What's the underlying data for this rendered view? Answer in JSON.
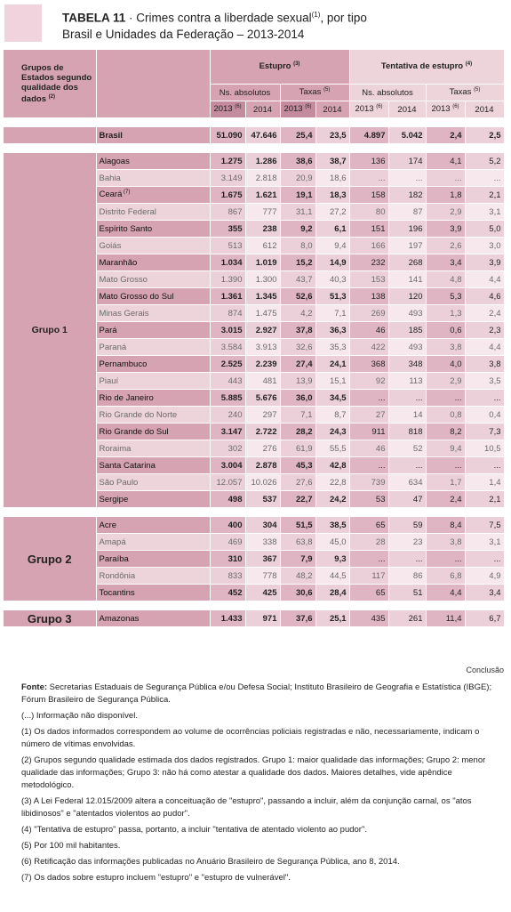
{
  "title": {
    "label": "TABELA 11",
    "text": "· Crimes contra a liberdade sexual",
    "sup": "(1)",
    "suffix": ", por tipo",
    "subtitle": "Brasil e Unidades da Federação – 2013-2014"
  },
  "header": {
    "group_col": "Grupos de Estados segundo qualidade dos dados",
    "group_col_sup": "(2)",
    "estupro": "Estupro",
    "estupro_sup": "(3)",
    "tentativa": "Tentativa de estupro",
    "tentativa_sup": "(4)",
    "ns_absolutos": "Ns. absolutos",
    "taxas": "Taxas",
    "taxas_sup": "(5)",
    "year_2013": "2013",
    "year_2013_sup": "(6)",
    "year_2014": "2014"
  },
  "brasil": [
    "Brasil",
    "51.090",
    "47.646",
    "25,4",
    "23,5",
    "4.897",
    "5.042",
    "2,4",
    "2,5"
  ],
  "groups": [
    {
      "label": "Grupo 1",
      "rows": [
        {
          "name": "Alagoas",
          "strong": true,
          "vals": [
            "1.275",
            "1.286",
            "38,6",
            "38,7",
            "136",
            "174",
            "4,1",
            "5,2"
          ]
        },
        {
          "name": "Bahia",
          "strong": false,
          "vals": [
            "3.149",
            "2.818",
            "20,9",
            "18,6",
            "...",
            "...",
            "...",
            "..."
          ]
        },
        {
          "name": "Ceará",
          "sup": "(7)",
          "strong": true,
          "vals": [
            "1.675",
            "1.621",
            "19,1",
            "18,3",
            "158",
            "182",
            "1,8",
            "2,1"
          ]
        },
        {
          "name": "Distrito Federal",
          "strong": false,
          "vals": [
            "867",
            "777",
            "31,1",
            "27,2",
            "80",
            "87",
            "2,9",
            "3,1"
          ]
        },
        {
          "name": "Espírito Santo",
          "strong": true,
          "vals": [
            "355",
            "238",
            "9,2",
            "6,1",
            "151",
            "196",
            "3,9",
            "5,0"
          ]
        },
        {
          "name": "Goiás",
          "strong": false,
          "vals": [
            "513",
            "612",
            "8,0",
            "9,4",
            "166",
            "197",
            "2,6",
            "3,0"
          ]
        },
        {
          "name": "Maranhão",
          "strong": true,
          "vals": [
            "1.034",
            "1.019",
            "15,2",
            "14,9",
            "232",
            "268",
            "3,4",
            "3,9"
          ]
        },
        {
          "name": "Mato Grosso",
          "strong": false,
          "vals": [
            "1.390",
            "1.300",
            "43,7",
            "40,3",
            "153",
            "141",
            "4,8",
            "4,4"
          ]
        },
        {
          "name": "Mato Grosso do Sul",
          "strong": true,
          "vals": [
            "1.361",
            "1.345",
            "52,6",
            "51,3",
            "138",
            "120",
            "5,3",
            "4,6"
          ]
        },
        {
          "name": "Minas Gerais",
          "strong": false,
          "vals": [
            "874",
            "1.475",
            "4,2",
            "7,1",
            "269",
            "493",
            "1,3",
            "2,4"
          ]
        },
        {
          "name": "Pará",
          "strong": true,
          "vals": [
            "3.015",
            "2.927",
            "37,8",
            "36,3",
            "46",
            "185",
            "0,6",
            "2,3"
          ]
        },
        {
          "name": "Paraná",
          "strong": false,
          "vals": [
            "3.584",
            "3.913",
            "32,6",
            "35,3",
            "422",
            "493",
            "3,8",
            "4,4"
          ]
        },
        {
          "name": "Pernambuco",
          "strong": true,
          "vals": [
            "2.525",
            "2.239",
            "27,4",
            "24,1",
            "368",
            "348",
            "4,0",
            "3,8"
          ]
        },
        {
          "name": "Piauí",
          "strong": false,
          "vals": [
            "443",
            "481",
            "13,9",
            "15,1",
            "92",
            "113",
            "2,9",
            "3,5"
          ]
        },
        {
          "name": "Rio de Janeiro",
          "strong": true,
          "vals": [
            "5.885",
            "5.676",
            "36,0",
            "34,5",
            "...",
            "...",
            "...",
            "..."
          ]
        },
        {
          "name": "Rio Grande do Norte",
          "strong": false,
          "vals": [
            "240",
            "297",
            "7,1",
            "8,7",
            "27",
            "14",
            "0,8",
            "0,4"
          ]
        },
        {
          "name": "Rio Grande do Sul",
          "strong": true,
          "vals": [
            "3.147",
            "2.722",
            "28,2",
            "24,3",
            "911",
            "818",
            "8,2",
            "7,3"
          ]
        },
        {
          "name": "Roraima",
          "strong": false,
          "vals": [
            "302",
            "276",
            "61,9",
            "55,5",
            "46",
            "52",
            "9,4",
            "10,5"
          ]
        },
        {
          "name": "Santa Catarina",
          "strong": true,
          "vals": [
            "3.004",
            "2.878",
            "45,3",
            "42,8",
            "...",
            "...",
            "...",
            "..."
          ]
        },
        {
          "name": "São Paulo",
          "strong": false,
          "vals": [
            "12.057",
            "10.026",
            "27,6",
            "22,8",
            "739",
            "634",
            "1,7",
            "1,4"
          ]
        },
        {
          "name": "Sergipe",
          "strong": true,
          "vals": [
            "498",
            "537",
            "22,7",
            "24,2",
            "53",
            "47",
            "2,4",
            "2,1"
          ]
        }
      ]
    },
    {
      "label": "Grupo 2",
      "rows": [
        {
          "name": "Acre",
          "strong": true,
          "vals": [
            "400",
            "304",
            "51,5",
            "38,5",
            "65",
            "59",
            "8,4",
            "7,5"
          ]
        },
        {
          "name": "Amapá",
          "strong": false,
          "vals": [
            "469",
            "338",
            "63,8",
            "45,0",
            "28",
            "23",
            "3,8",
            "3,1"
          ]
        },
        {
          "name": "Paraíba",
          "strong": true,
          "vals": [
            "310",
            "367",
            "7,9",
            "9,3",
            "...",
            "...",
            "...",
            "..."
          ]
        },
        {
          "name": "Rondônia",
          "strong": false,
          "vals": [
            "833",
            "778",
            "48,2",
            "44,5",
            "117",
            "86",
            "6,8",
            "4,9"
          ]
        },
        {
          "name": "Tocantins",
          "strong": true,
          "vals": [
            "452",
            "425",
            "30,6",
            "28,4",
            "65",
            "51",
            "4,4",
            "3,4"
          ]
        }
      ]
    },
    {
      "label": "Grupo 3",
      "rows": [
        {
          "name": "Amazonas",
          "strong": true,
          "vals": [
            "1.433",
            "971",
            "37,6",
            "25,1",
            "435",
            "261",
            "11,4",
            "6,7"
          ]
        }
      ]
    }
  ],
  "conclusao": "Conclusão",
  "notes": {
    "fonte_label": "Fonte:",
    "fonte_text": "Secretarias Estaduais de Segurança Pública e/ou Defesa Social; Instituto Brasileiro de Geografia e Estatística (IBGE); Fórum Brasileiro de Segurança Pública.",
    "items": [
      "(...) Informação não disponível.",
      "(1) Os dados informados correspondem ao volume de ocorrências policiais registradas e não, necessariamente, indicam o número de vítimas envolvidas.",
      "(2) Grupos segundo qualidade estimada dos dados registrados. Grupo 1: maior qualidade das informações; Grupo 2: menor qualidade das informações; Grupo 3: não há como atestar a qualidade dos dados. Maiores detalhes, vide apêndice metodológico.",
      "(3) A Lei Federal 12.015/2009 altera a conceituação de \"estupro\", passando a incluir, além da conjunção carnal, os \"atos libidinosos\" e \"atentados violentos ao pudor\".",
      "(4) \"Tentativa de estupro\" passa, portanto, a incluir \"tentativa de atentado violento ao pudor\".",
      "(5) Por 100 mil habitantes.",
      "(6) Retificação das informações publicadas no Anuário Brasileiro de Segurança Pública, ano 8, 2014.",
      "(7) Os dados sobre estupro incluem \"estupro\" e \"estupro de vulnerável\"."
    ]
  },
  "colors": {
    "pink_dark": "#d6a3b3",
    "pink_light": "#edd3da",
    "accent": "#c48a9d"
  }
}
